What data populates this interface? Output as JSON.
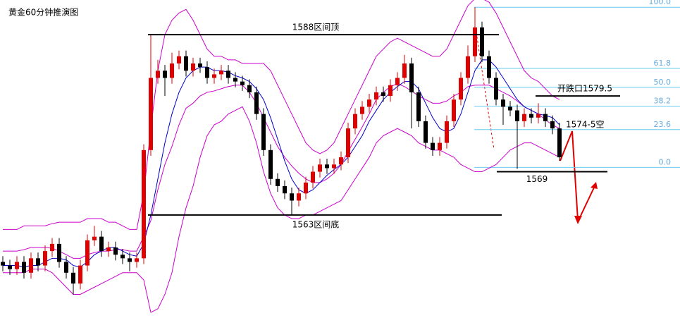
{
  "chart_data": {
    "type": "candlestick",
    "title": "黄金60分钟推演图",
    "ylim": [
      1549.8,
      1592.8
    ],
    "up_color": "#e00000",
    "down_color": "#000000",
    "open": [
      1556.5,
      1556,
      1555.5,
      1556.5,
      1555,
      1557,
      1556,
      1558,
      1559,
      1556.5,
      1555,
      1553.5,
      1556,
      1559.5,
      1560,
      1558,
      1558.5,
      1557.5,
      1557,
      1556.5,
      1557,
      1572,
      1582,
      1583,
      1582,
      1584,
      1585,
      1583,
      1584,
      1583.5,
      1582,
      1582.5,
      1583,
      1582,
      1581.5,
      1581,
      1580,
      1577,
      1572,
      1568,
      1567,
      1566,
      1565,
      1566,
      1567.5,
      1569,
      1570,
      1569.5,
      1570,
      1571,
      1575,
      1577,
      1578,
      1579,
      1580,
      1579.5,
      1581,
      1582,
      1584,
      1580,
      1576,
      1573,
      1572,
      1573,
      1576,
      1579,
      1582,
      1585,
      1589,
      1585,
      1582,
      1579,
      1578,
      1577.5,
      1576,
      1577,
      1576.5,
      1577,
      1576,
      1575
    ],
    "high": [
      1557.3,
      1556.8,
      1557.3,
      1557.3,
      1557.8,
      1557.8,
      1558.8,
      1559.8,
      1559.8,
      1557.3,
      1555.8,
      1556.8,
      1560.3,
      1561.5,
      1560.8,
      1559.3,
      1559.3,
      1558.3,
      1557.8,
      1557.8,
      1572.8,
      1588,
      1584.5,
      1583.8,
      1585.5,
      1585.8,
      1585.8,
      1584.8,
      1584.8,
      1584.3,
      1583.3,
      1583.8,
      1583.8,
      1582.8,
      1582.3,
      1581.8,
      1580.8,
      1577.8,
      1572.8,
      1568.8,
      1567.8,
      1566.8,
      1566.8,
      1568.3,
      1569.8,
      1570.8,
      1570.8,
      1570.8,
      1571.8,
      1575.8,
      1577.8,
      1578.8,
      1579.8,
      1580.8,
      1580.8,
      1581.8,
      1582.8,
      1585.2,
      1584.8,
      1580.8,
      1576.8,
      1573.8,
      1573.8,
      1576.8,
      1579.8,
      1582.8,
      1586.5,
      1591.8,
      1589.8,
      1585.8,
      1582.8,
      1579.8,
      1578.8,
      1578.3,
      1577.8,
      1577.8,
      1578.5,
      1577.8,
      1576.8,
      1575.8
    ],
    "low": [
      1555.2,
      1554.7,
      1554.7,
      1554.2,
      1554.2,
      1555.2,
      1555.2,
      1557.2,
      1555.7,
      1554.2,
      1552,
      1552.7,
      1555.2,
      1558.7,
      1557.2,
      1557.2,
      1556.7,
      1556.2,
      1555.2,
      1555.7,
      1556.2,
      1571.2,
      1581.2,
      1579.5,
      1581.2,
      1583.2,
      1582.2,
      1582.2,
      1582.7,
      1581.2,
      1581.2,
      1581.7,
      1581.2,
      1580.7,
      1580.2,
      1579.2,
      1576.2,
      1571.2,
      1567.2,
      1566.2,
      1565.2,
      1563,
      1564.2,
      1565.2,
      1566.7,
      1568.2,
      1568.7,
      1568.7,
      1569.2,
      1570.2,
      1574.2,
      1576.2,
      1577.2,
      1578.2,
      1578.7,
      1578.7,
      1580.2,
      1581.2,
      1575,
      1575.2,
      1572.2,
      1571.2,
      1571.2,
      1572.2,
      1575.2,
      1578.2,
      1581.2,
      1584.2,
      1584.2,
      1581.2,
      1578.2,
      1575.5,
      1576.7,
      1569.4,
      1575.2,
      1575.7,
      1575.7,
      1575.2,
      1574.2,
      1570.5
    ],
    "close": [
      1556,
      1555.5,
      1556.5,
      1555,
      1557,
      1556,
      1558,
      1559,
      1556.5,
      1555,
      1553.5,
      1556,
      1559.5,
      1560,
      1558,
      1558.5,
      1557.5,
      1557,
      1556.5,
      1557,
      1572,
      1582,
      1583,
      1582,
      1584,
      1585,
      1583,
      1584,
      1583.5,
      1582,
      1582.5,
      1583,
      1582,
      1581.5,
      1581,
      1580,
      1577,
      1572,
      1568,
      1567,
      1566,
      1565,
      1566,
      1567.5,
      1569,
      1570,
      1569.5,
      1570,
      1571,
      1575,
      1577,
      1578,
      1579,
      1580,
      1579.5,
      1581,
      1582,
      1584,
      1580,
      1576,
      1573,
      1572,
      1573,
      1576,
      1579,
      1582,
      1585,
      1589,
      1585,
      1582,
      1579,
      1578,
      1577.5,
      1576,
      1577,
      1576.5,
      1577,
      1576,
      1575,
      1571
    ],
    "bands": {
      "color": "#cc00cc",
      "upper": [
        1561,
        1561,
        1561,
        1561.5,
        1561.5,
        1561.5,
        1561.5,
        1561.8,
        1562,
        1562,
        1562,
        1562,
        1562.5,
        1562.5,
        1562.5,
        1562,
        1562,
        1561.5,
        1561,
        1561,
        1566,
        1575,
        1583,
        1588,
        1590,
        1591,
        1591.5,
        1590,
        1588,
        1586,
        1585,
        1585,
        1584.5,
        1584.5,
        1584,
        1584,
        1584,
        1584,
        1583,
        1581,
        1579,
        1577,
        1575,
        1573,
        1572,
        1571.5,
        1572,
        1573,
        1575,
        1577,
        1579,
        1581,
        1583,
        1585,
        1586,
        1587,
        1587.5,
        1587,
        1586.5,
        1586,
        1585.5,
        1585,
        1585,
        1586,
        1588,
        1590,
        1592,
        1593,
        1593,
        1592.5,
        1591,
        1589,
        1587,
        1585,
        1583,
        1582,
        1581.5,
        1580.5,
        1579.5,
        1579
      ],
      "middle": [
        1558,
        1558,
        1558,
        1558.2,
        1558.5,
        1558.5,
        1558.5,
        1558.4,
        1558,
        1557.5,
        1557,
        1557,
        1557.5,
        1557.8,
        1558,
        1558,
        1558.2,
        1558.2,
        1558,
        1558,
        1560,
        1562.2,
        1566.5,
        1570,
        1572.5,
        1575.5,
        1577.8,
        1578.5,
        1579.5,
        1580,
        1580.2,
        1580.5,
        1580.8,
        1581,
        1581,
        1580,
        1578.5,
        1576.5,
        1574.5,
        1572.5,
        1571,
        1569.8,
        1568.8,
        1568,
        1567.5,
        1567.5,
        1568,
        1568.8,
        1570,
        1571.8,
        1573.5,
        1575.2,
        1577,
        1579,
        1580,
        1580.8,
        1581.2,
        1580.8,
        1580.2,
        1579.5,
        1579,
        1578.5,
        1578.5,
        1578.8,
        1579.5,
        1580,
        1580.8,
        1581,
        1581,
        1581,
        1580.5,
        1580,
        1579.5,
        1578.8,
        1578,
        1577.5,
        1577,
        1576.2,
        1575.5,
        1575
      ],
      "lower": [
        1555,
        1555,
        1555,
        1555,
        1555.5,
        1555.5,
        1555.5,
        1555,
        1554,
        1553,
        1552,
        1552,
        1552.5,
        1553,
        1553.5,
        1554,
        1554.5,
        1555,
        1555,
        1555,
        1554,
        1549.5,
        1550,
        1552,
        1555,
        1560,
        1564,
        1567,
        1571,
        1574,
        1575.5,
        1576,
        1577,
        1577.5,
        1578,
        1576,
        1573,
        1569,
        1566,
        1564,
        1563,
        1562.5,
        1562.5,
        1563,
        1563,
        1563.5,
        1564,
        1564.5,
        1565,
        1566.5,
        1568,
        1569.5,
        1571,
        1573,
        1574,
        1574.5,
        1575,
        1574.5,
        1574,
        1573,
        1572.5,
        1572,
        1572,
        1571.5,
        1571,
        1570,
        1569.5,
        1569,
        1569,
        1569.5,
        1570,
        1571,
        1572,
        1572.5,
        1573,
        1573,
        1572.5,
        1572,
        1571.5,
        1571
      ]
    },
    "ma": {
      "color": "#0000cc",
      "values": [
        1556,
        1556,
        1556,
        1555.8,
        1556,
        1556,
        1556.5,
        1557,
        1557,
        1556.8,
        1556,
        1555.8,
        1556.5,
        1557.5,
        1558,
        1558.5,
        1558.5,
        1558,
        1557.5,
        1557.3,
        1559,
        1563,
        1568,
        1573,
        1577,
        1580,
        1582,
        1583,
        1583.5,
        1583.5,
        1583,
        1583,
        1582.8,
        1582.3,
        1582,
        1581.5,
        1580.5,
        1579,
        1576.5,
        1573.5,
        1570.5,
        1568,
        1566.5,
        1566,
        1566.5,
        1567.5,
        1568.5,
        1569.3,
        1570,
        1571,
        1572.5,
        1574,
        1576,
        1577.5,
        1579,
        1580,
        1580.8,
        1581.5,
        1581.5,
        1580.5,
        1578.5,
        1576.5,
        1575,
        1574.5,
        1575,
        1577,
        1580,
        1583,
        1584.5,
        1584.5,
        1583.5,
        1582,
        1580.5,
        1579,
        1578,
        1577.5,
        1577,
        1576.8,
        1576.5,
        1575.5
      ]
    },
    "levels": [
      {
        "value": 1588,
        "label": "1588区间顶"
      },
      {
        "value": 1563,
        "label": "1563区间底"
      },
      {
        "value": 1579.5,
        "label": "开跌口1579.5"
      },
      {
        "value": 1569,
        "label": "1569"
      }
    ],
    "fib": {
      "color": "#66ccee",
      "high": 1591.8,
      "low": 1569.6,
      "levels": [
        100,
        61.8,
        50,
        38.2,
        23.6,
        0
      ],
      "labels": [
        "100.0",
        "61.8",
        "50.0",
        "38.2",
        "23.6",
        "0.0"
      ]
    },
    "annotation": {
      "text": "1574-5空",
      "value": 1575.5
    }
  }
}
